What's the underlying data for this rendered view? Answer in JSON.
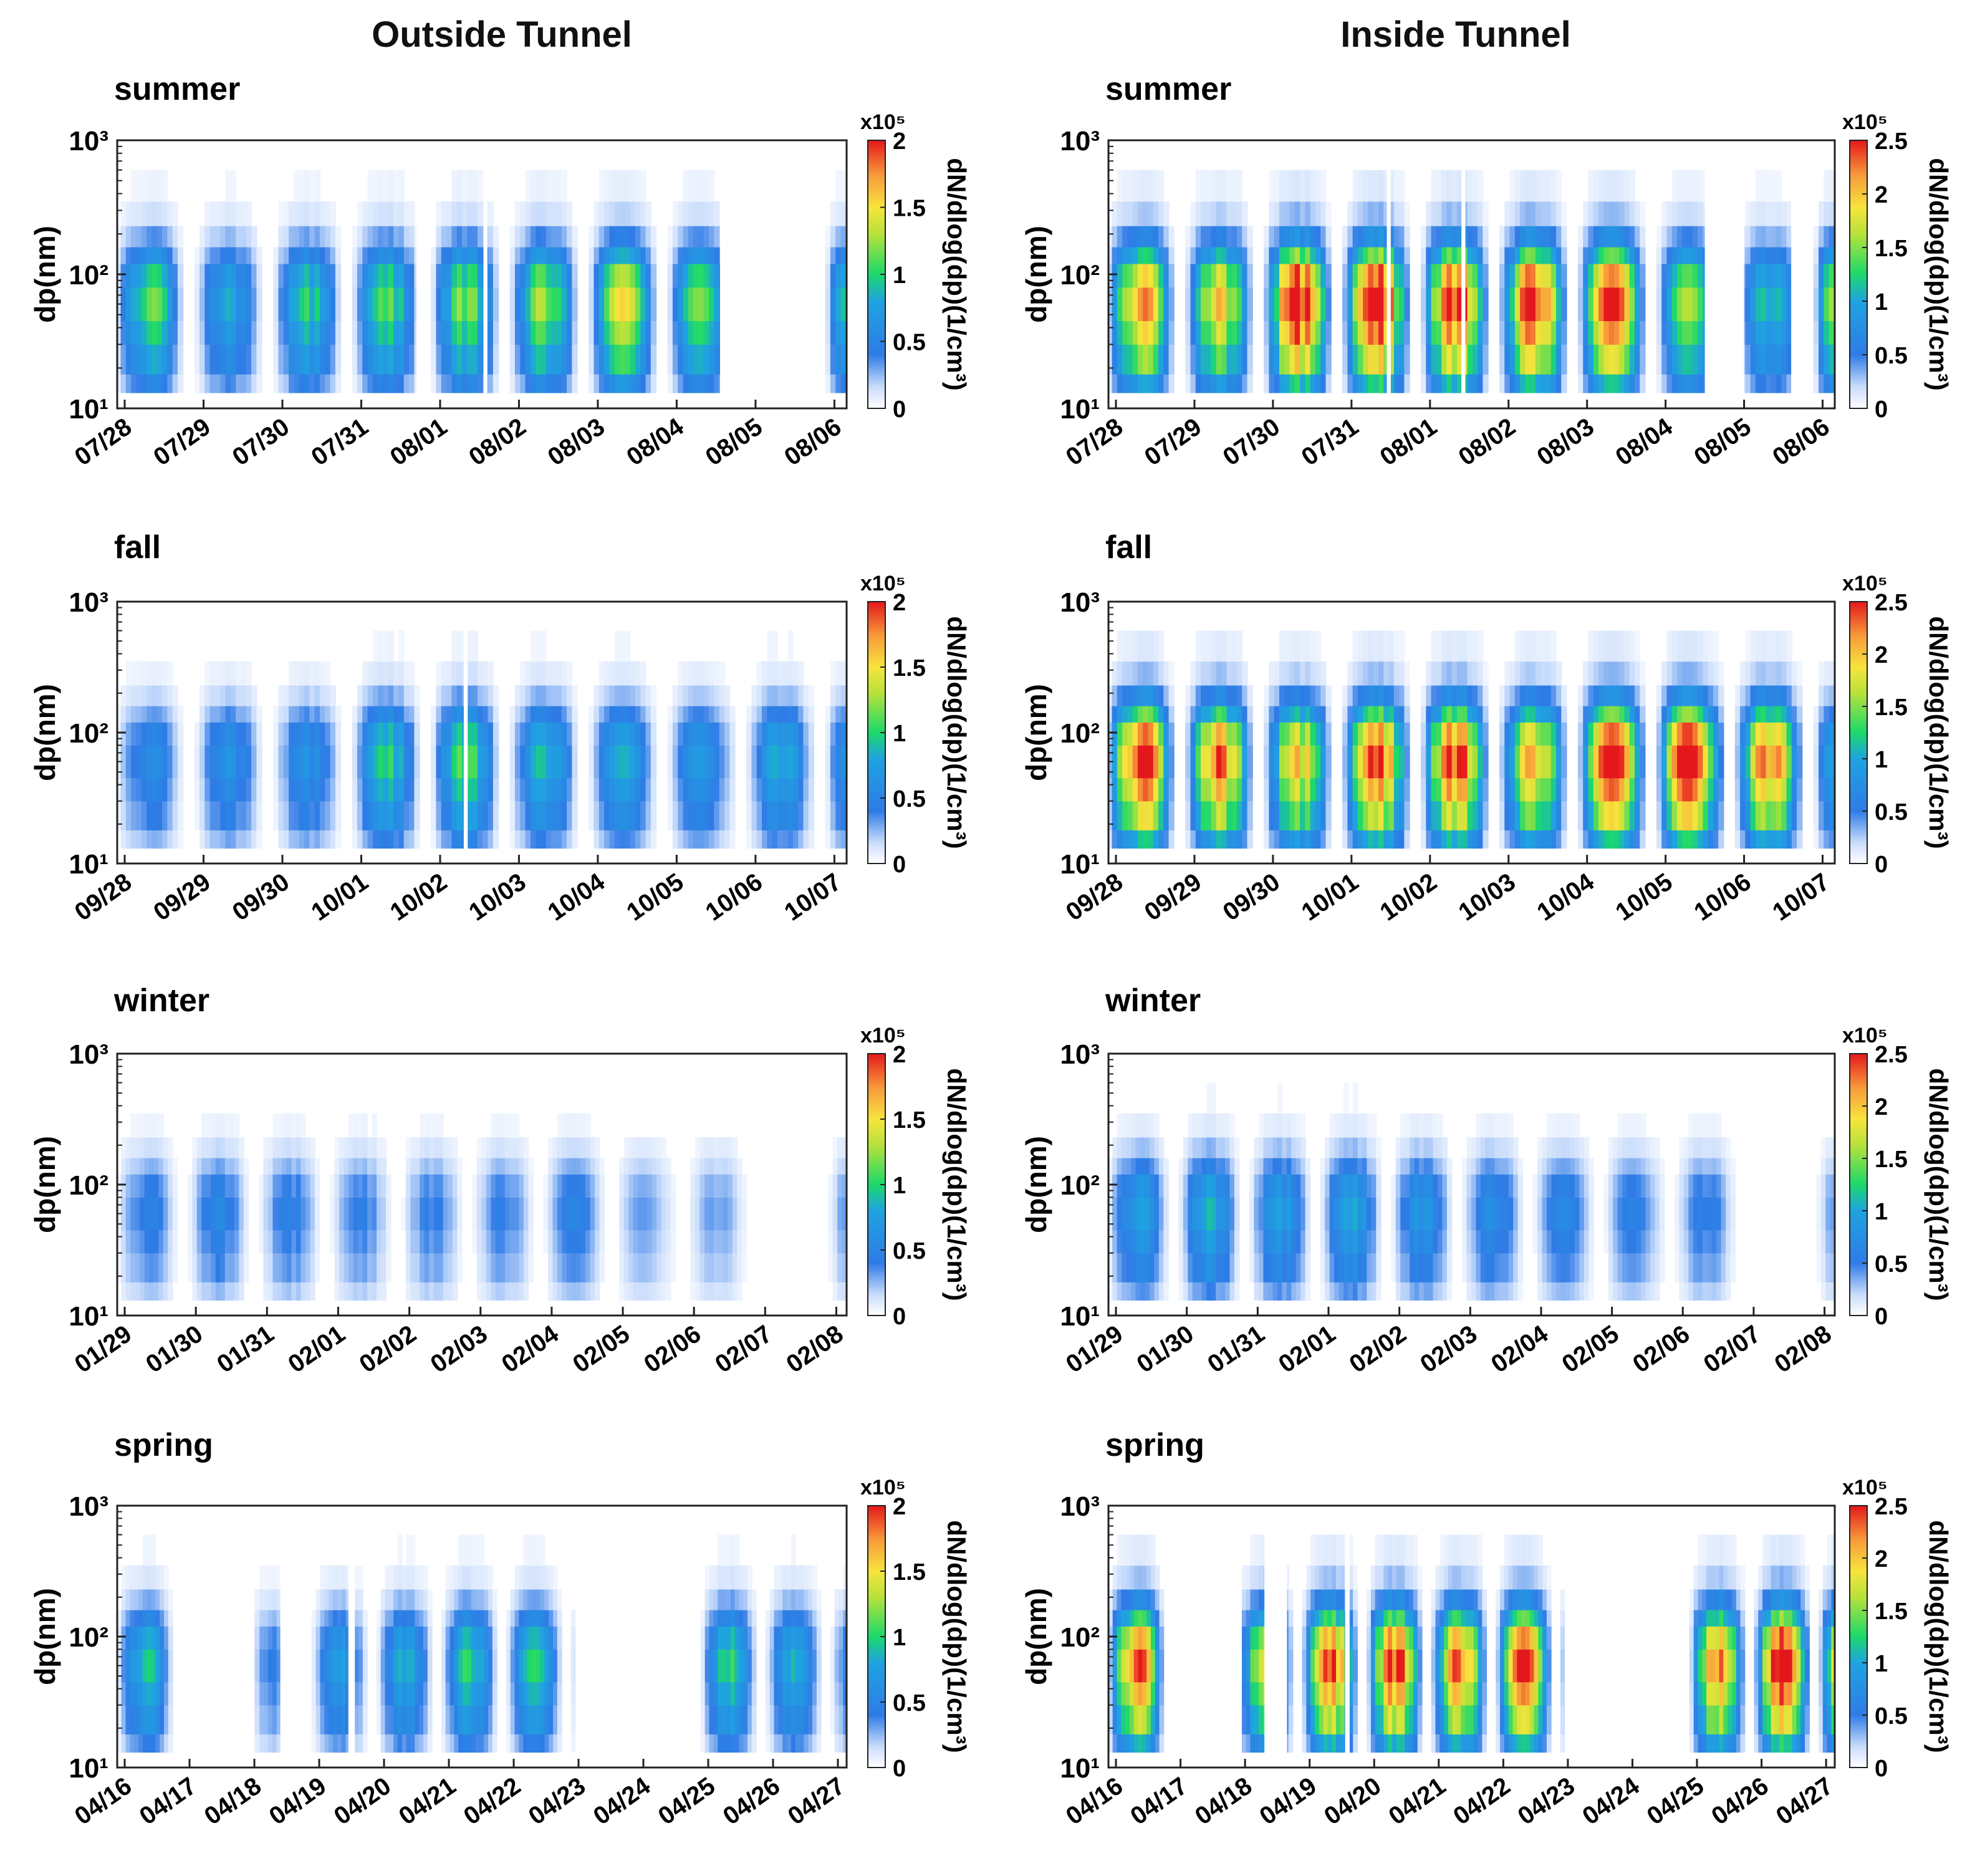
{
  "figure": {
    "column_titles": [
      "Outside Tunnel",
      "Inside Tunnel"
    ]
  },
  "colormap": {
    "name": "jet-like",
    "stops": [
      {
        "t": 0.0,
        "color": "#ffffff"
      },
      {
        "t": 0.08,
        "color": "#c9dcfb"
      },
      {
        "t": 0.2,
        "color": "#2f7be6"
      },
      {
        "t": 0.4,
        "color": "#1fa3e0"
      },
      {
        "t": 0.5,
        "color": "#1bd96b"
      },
      {
        "t": 0.65,
        "color": "#b6e23a"
      },
      {
        "t": 0.75,
        "color": "#f7e43c"
      },
      {
        "t": 0.87,
        "color": "#f79a3a"
      },
      {
        "t": 1.0,
        "color": "#e4181c"
      }
    ]
  },
  "chart_data": [
    {
      "type": "heatmap",
      "column": "Outside Tunnel",
      "title": "summer",
      "ylabel": "dp(nm)",
      "yscale": "log",
      "ylim": [
        10,
        1000
      ],
      "yticks": [
        "10¹",
        "10²",
        "10³"
      ],
      "colorbar": {
        "label": "dN/dlog(dp)(1/cm³)",
        "multiplier": "x10⁵",
        "range": [
          0,
          2
        ],
        "ticks": [
          "0",
          "0.5",
          "1",
          "1.5",
          "2"
        ]
      },
      "categories": [
        "07/28",
        "07/29",
        "07/30",
        "07/31",
        "08/01",
        "08/02",
        "08/03",
        "08/04",
        "08/05",
        "08/06"
      ],
      "daily_peak": [
        1.1,
        0.75,
        0.95,
        1.05,
        1.15,
        1.2,
        1.35,
        1.1,
        0.0,
        1.35
      ],
      "data_gaps": [
        [
          3.7,
          3.75
        ],
        [
          4.55,
          4.6
        ],
        [
          7.55,
          8.5
        ]
      ]
    },
    {
      "type": "heatmap",
      "column": "Inside Tunnel",
      "title": "summer",
      "ylabel": "dp(nm)",
      "yscale": "log",
      "ylim": [
        10,
        1000
      ],
      "yticks": [
        "10¹",
        "10²",
        "10³"
      ],
      "colorbar": {
        "label": "dN/dlog(dp)(1/cm³)",
        "multiplier": "x10⁵",
        "range": [
          0,
          2.5
        ],
        "ticks": [
          "0",
          "0.5",
          "1",
          "1.5",
          "2",
          "2.5"
        ]
      },
      "categories": [
        "07/28",
        "07/29",
        "07/30",
        "07/31",
        "08/01",
        "08/02",
        "08/03",
        "08/04",
        "08/05",
        "08/06"
      ],
      "daily_peak": [
        2.1,
        1.85,
        2.6,
        2.6,
        2.45,
        2.45,
        2.3,
        1.5,
        1.1,
        2.3
      ],
      "data_gaps": [
        [
          3.45,
          3.5
        ],
        [
          4.4,
          4.45
        ],
        [
          7.5,
          8.0
        ],
        [
          8.6,
          8.8
        ]
      ]
    },
    {
      "type": "heatmap",
      "column": "Outside Tunnel",
      "title": "fall",
      "ylabel": "dp(nm)",
      "yscale": "log",
      "ylim": [
        10,
        1000
      ],
      "yticks": [
        "10¹",
        "10²",
        "10³"
      ],
      "colorbar": {
        "label": "dN/dlog(dp)(1/cm³)",
        "multiplier": "x10⁵",
        "range": [
          0,
          2
        ],
        "ticks": [
          "0",
          "0.5",
          "1",
          "1.5",
          "2"
        ]
      },
      "categories": [
        "09/28",
        "09/29",
        "09/30",
        "10/01",
        "10/02",
        "10/03",
        "10/04",
        "10/05",
        "10/06",
        "10/07"
      ],
      "daily_peak": [
        0.55,
        0.6,
        0.6,
        0.95,
        1.05,
        0.85,
        0.75,
        0.65,
        0.8,
        0.9
      ],
      "data_gaps": [
        [
          4.3,
          4.35
        ]
      ]
    },
    {
      "type": "heatmap",
      "column": "Inside Tunnel",
      "title": "fall",
      "ylabel": "dp(nm)",
      "yscale": "log",
      "ylim": [
        10,
        1000
      ],
      "yticks": [
        "10¹",
        "10²",
        "10³"
      ],
      "colorbar": {
        "label": "dN/dlog(dp)(1/cm³)",
        "multiplier": "x10⁵",
        "range": [
          0,
          2.5
        ],
        "ticks": [
          "0",
          "0.5",
          "1",
          "1.5",
          "2",
          "2.5"
        ]
      },
      "categories": [
        "09/28",
        "09/29",
        "09/30",
        "10/01",
        "10/02",
        "10/03",
        "10/04",
        "10/05",
        "10/06",
        "10/07"
      ],
      "daily_peak": [
        2.5,
        2.2,
        1.9,
        2.35,
        2.4,
        1.95,
        2.4,
        2.6,
        2.2,
        1.4
      ],
      "data_gaps": []
    },
    {
      "type": "heatmap",
      "column": "Outside Tunnel",
      "title": "winter",
      "ylabel": "dp(nm)",
      "yscale": "log",
      "ylim": [
        10,
        1000
      ],
      "yticks": [
        "10¹",
        "10²",
        "10³"
      ],
      "colorbar": {
        "label": "dN/dlog(dp)(1/cm³)",
        "multiplier": "x10⁵",
        "range": [
          0,
          2
        ],
        "ticks": [
          "0",
          "0.5",
          "1",
          "1.5",
          "2"
        ]
      },
      "categories": [
        "01/29",
        "01/30",
        "01/31",
        "02/01",
        "02/02",
        "02/03",
        "02/04",
        "02/05",
        "02/06",
        "02/07",
        "02/08"
      ],
      "daily_peak": [
        0.45,
        0.5,
        0.45,
        0.4,
        0.4,
        0.4,
        0.45,
        0.3,
        0.3,
        0.0,
        0.45
      ],
      "data_gaps": [
        [
          9.0,
          9.45
        ]
      ]
    },
    {
      "type": "heatmap",
      "column": "Inside Tunnel",
      "title": "winter",
      "ylabel": "dp(nm)",
      "yscale": "log",
      "ylim": [
        10,
        1000
      ],
      "yticks": [
        "10¹",
        "10²",
        "10³"
      ],
      "colorbar": {
        "label": "dN/dlog(dp)(1/cm³)",
        "multiplier": "x10⁵",
        "range": [
          0,
          2.5
        ],
        "ticks": [
          "0",
          "0.5",
          "1",
          "1.5",
          "2",
          "2.5"
        ]
      },
      "categories": [
        "01/29",
        "01/30",
        "01/31",
        "02/01",
        "02/02",
        "02/03",
        "02/04",
        "02/05",
        "02/06",
        "02/07",
        "02/08"
      ],
      "daily_peak": [
        0.9,
        1.0,
        0.9,
        0.95,
        0.8,
        0.7,
        0.6,
        0.55,
        0.55,
        0.0,
        0.55
      ],
      "data_gaps": [
        [
          9.0,
          9.4
        ]
      ]
    },
    {
      "type": "heatmap",
      "column": "Outside Tunnel",
      "title": "spring",
      "ylabel": "dp(nm)",
      "yscale": "log",
      "ylim": [
        10,
        1000
      ],
      "yticks": [
        "10¹",
        "10²",
        "10³"
      ],
      "colorbar": {
        "label": "dN/dlog(dp)(1/cm³)",
        "multiplier": "x10⁵",
        "range": [
          0,
          2
        ],
        "ticks": [
          "0",
          "0.5",
          "1",
          "1.5",
          "2"
        ]
      },
      "categories": [
        "04/16",
        "04/17",
        "04/18",
        "04/19",
        "04/20",
        "04/21",
        "04/22",
        "04/23",
        "04/24",
        "04/25",
        "04/26",
        "04/27"
      ],
      "daily_peak": [
        0.9,
        0.0,
        0.4,
        0.7,
        0.8,
        0.95,
        0.9,
        0.85,
        0.0,
        0.95,
        0.8,
        0.6
      ],
      "data_gaps": [
        [
          0.95,
          2.0
        ],
        [
          2.4,
          2.8
        ],
        [
          3.45,
          3.55
        ],
        [
          6.95,
          7.95
        ]
      ]
    },
    {
      "type": "heatmap",
      "column": "Inside Tunnel",
      "title": "spring",
      "ylabel": "dp(nm)",
      "yscale": "log",
      "ylim": [
        10,
        1000
      ],
      "yticks": [
        "10¹",
        "10²",
        "10³"
      ],
      "colorbar": {
        "label": "dN/dlog(dp)(1/cm³)",
        "multiplier": "x10⁵",
        "range": [
          0,
          2.5
        ],
        "ticks": [
          "0",
          "0.5",
          "1",
          "1.5",
          "2",
          "2.5"
        ]
      },
      "categories": [
        "04/16",
        "04/17",
        "04/18",
        "04/19",
        "04/20",
        "04/21",
        "04/22",
        "04/23",
        "04/24",
        "04/25",
        "04/26",
        "04/27"
      ],
      "daily_peak": [
        2.3,
        0.0,
        1.7,
        2.3,
        2.4,
        2.2,
        2.3,
        2.0,
        0.0,
        2.1,
        2.6,
        2.3
      ],
      "data_gaps": [
        [
          0.85,
          1.95
        ],
        [
          2.3,
          2.65
        ],
        [
          3.55,
          3.62
        ],
        [
          6.95,
          7.95
        ]
      ]
    }
  ]
}
